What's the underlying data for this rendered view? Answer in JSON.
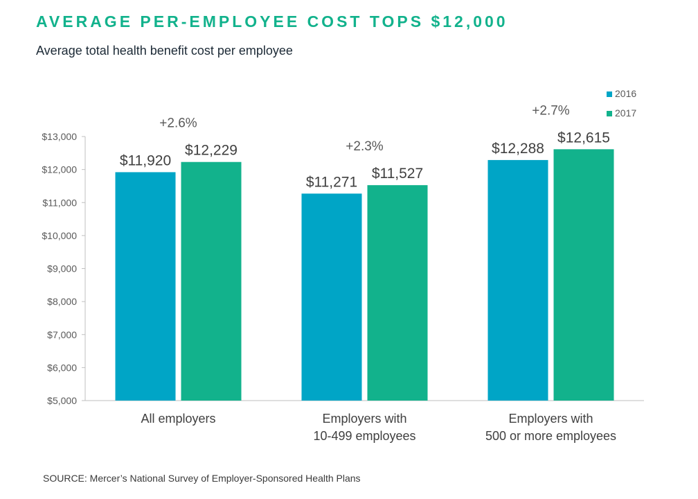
{
  "title": "AVERAGE PER-EMPLOYEE COST TOPS $12,000",
  "subtitle": "Average total health benefit cost per employee",
  "source": "SOURCE:  Mercer’s National Survey of Employer-Sponsored Health Plans",
  "colors": {
    "title": "#12b28c",
    "series_2016": "#00a5c6",
    "series_2017": "#12b28c"
  },
  "chart_data": {
    "type": "bar",
    "title": "AVERAGE PER-EMPLOYEE COST TOPS $12,000",
    "subtitle": "Average total health benefit cost per employee",
    "categories": [
      [
        "All employers"
      ],
      [
        "Employers with",
        "10-499 employees"
      ],
      [
        "Employers with",
        "500 or more employees"
      ]
    ],
    "series": [
      {
        "name": "2016",
        "color": "#00a5c6",
        "values": [
          11920,
          11271,
          12288
        ],
        "labels": [
          "$11,920",
          "$11,271",
          "$12,288"
        ]
      },
      {
        "name": "2017",
        "color": "#12b28c",
        "values": [
          12229,
          11527,
          12615
        ],
        "labels": [
          "$12,229",
          "$11,527",
          "$12,615"
        ]
      }
    ],
    "annotations": [
      "+2.6%",
      "+2.3%",
      "+2.7%"
    ],
    "ylim": [
      5000,
      13000
    ],
    "yticks": [
      5000,
      6000,
      7000,
      8000,
      9000,
      10000,
      11000,
      12000,
      13000
    ],
    "ytick_labels": [
      "$5,000",
      "$6,000",
      "$7,000",
      "$8,000",
      "$9,000",
      "$10,000",
      "$11,000",
      "$12,000",
      "$13,000"
    ],
    "xlabel": "",
    "ylabel": "",
    "grid": false,
    "legend_position": "top-right"
  }
}
